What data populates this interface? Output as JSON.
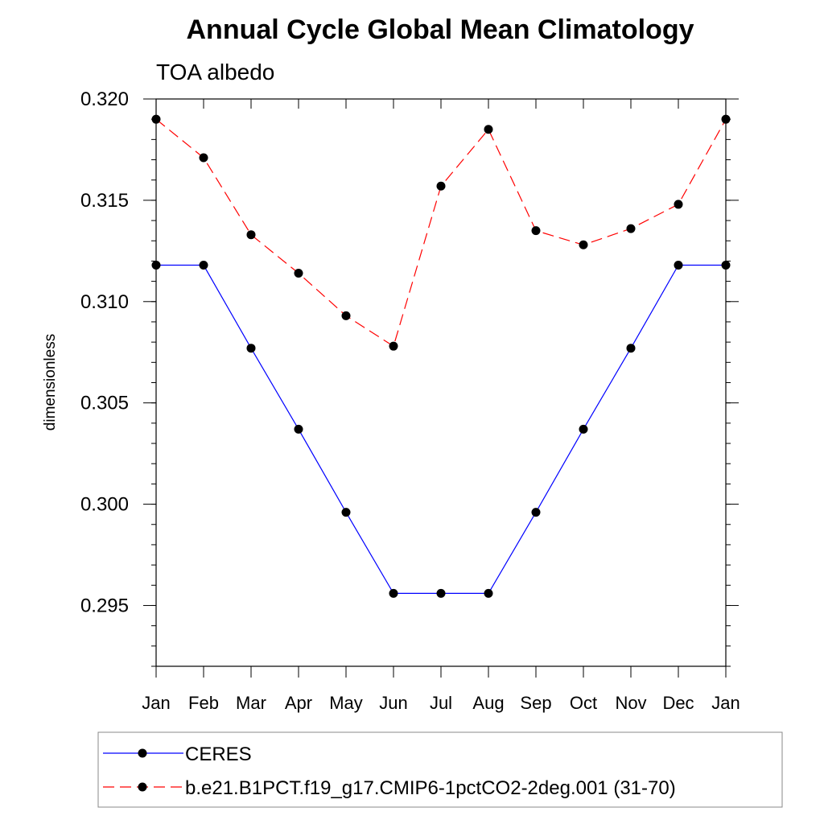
{
  "chart_data": {
    "type": "line",
    "title": "Annual Cycle Global Mean Climatology",
    "subtitle": "TOA albedo",
    "xlabel": "",
    "ylabel": "dimensionless",
    "categories": [
      "Jan",
      "Feb",
      "Mar",
      "Apr",
      "May",
      "Jun",
      "Jul",
      "Aug",
      "Sep",
      "Oct",
      "Nov",
      "Dec",
      "Jan"
    ],
    "ylim": [
      0.292,
      0.32
    ],
    "yticks": [
      0.295,
      0.3,
      0.305,
      0.31,
      0.315,
      0.32
    ],
    "ytick_labels": [
      "0.295",
      "0.300",
      "0.305",
      "0.310",
      "0.315",
      "0.320"
    ],
    "series": [
      {
        "name": "CERES",
        "color": "#0000ff",
        "dash": "solid",
        "values": [
          0.3118,
          0.3118,
          0.3077,
          0.3037,
          0.2996,
          0.2956,
          0.2956,
          0.2956,
          0.2996,
          0.3037,
          0.3077,
          0.3118,
          0.3118
        ]
      },
      {
        "name": "b.e21.B1PCT.f19_g17.CMIP6-1pctCO2-2deg.001 (31-70)",
        "color": "#ff0000",
        "dash": "dashed",
        "values": [
          0.319,
          0.3171,
          0.3133,
          0.3114,
          0.3093,
          0.3078,
          0.3157,
          0.3185,
          0.3135,
          0.3128,
          0.3136,
          0.3148,
          0.319
        ]
      }
    ],
    "marker_color": "#000000",
    "legend_position": "bottom"
  }
}
